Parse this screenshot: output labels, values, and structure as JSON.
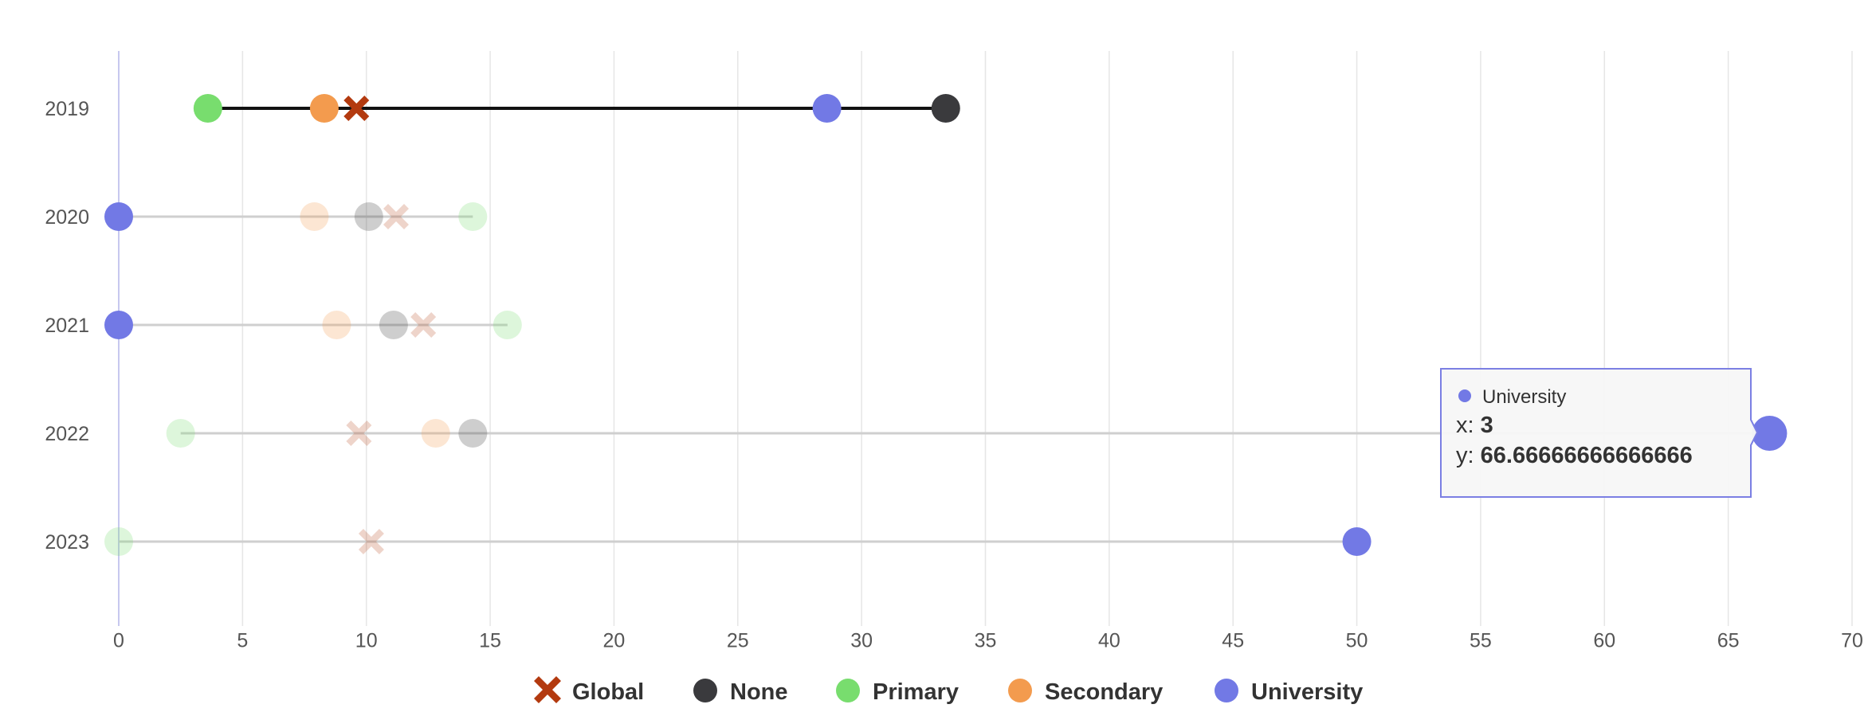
{
  "chart_data": {
    "type": "scatter",
    "title": "",
    "xlabel": "",
    "ylabel": "",
    "xlim": [
      0,
      70
    ],
    "x_ticks": [
      "0",
      "5",
      "10",
      "15",
      "20",
      "25",
      "30",
      "35",
      "40",
      "45",
      "50",
      "55",
      "60",
      "65",
      "70"
    ],
    "categories": [
      "2019",
      "2020",
      "2021",
      "2022",
      "2023"
    ],
    "grid": true,
    "legend_position": "bottom",
    "highlighted_category": "2019",
    "series": [
      {
        "name": "Global",
        "marker": "x",
        "color": "#b33a0f",
        "values": [
          9.6,
          11.2,
          12.3,
          9.7,
          10.2
        ]
      },
      {
        "name": "None",
        "marker": "circle",
        "color": "#3a3a3d",
        "values": [
          33.4,
          10.1,
          11.1,
          14.3,
          null
        ]
      },
      {
        "name": "Primary",
        "marker": "circle",
        "color": "#78dd6e",
        "values": [
          3.6,
          14.3,
          15.7,
          2.5,
          0
        ]
      },
      {
        "name": "Secondary",
        "marker": "circle",
        "color": "#f39b4e",
        "values": [
          8.3,
          7.9,
          8.8,
          12.8,
          null
        ]
      },
      {
        "name": "University",
        "marker": "circle",
        "color": "#7279e5",
        "values": [
          28.6,
          0,
          0,
          66.66666666666666,
          50
        ]
      }
    ],
    "tooltip": {
      "series": "University",
      "x_label": "x:",
      "x_value": "3",
      "y_label": "y:",
      "y_value": "66.66666666666666"
    }
  }
}
